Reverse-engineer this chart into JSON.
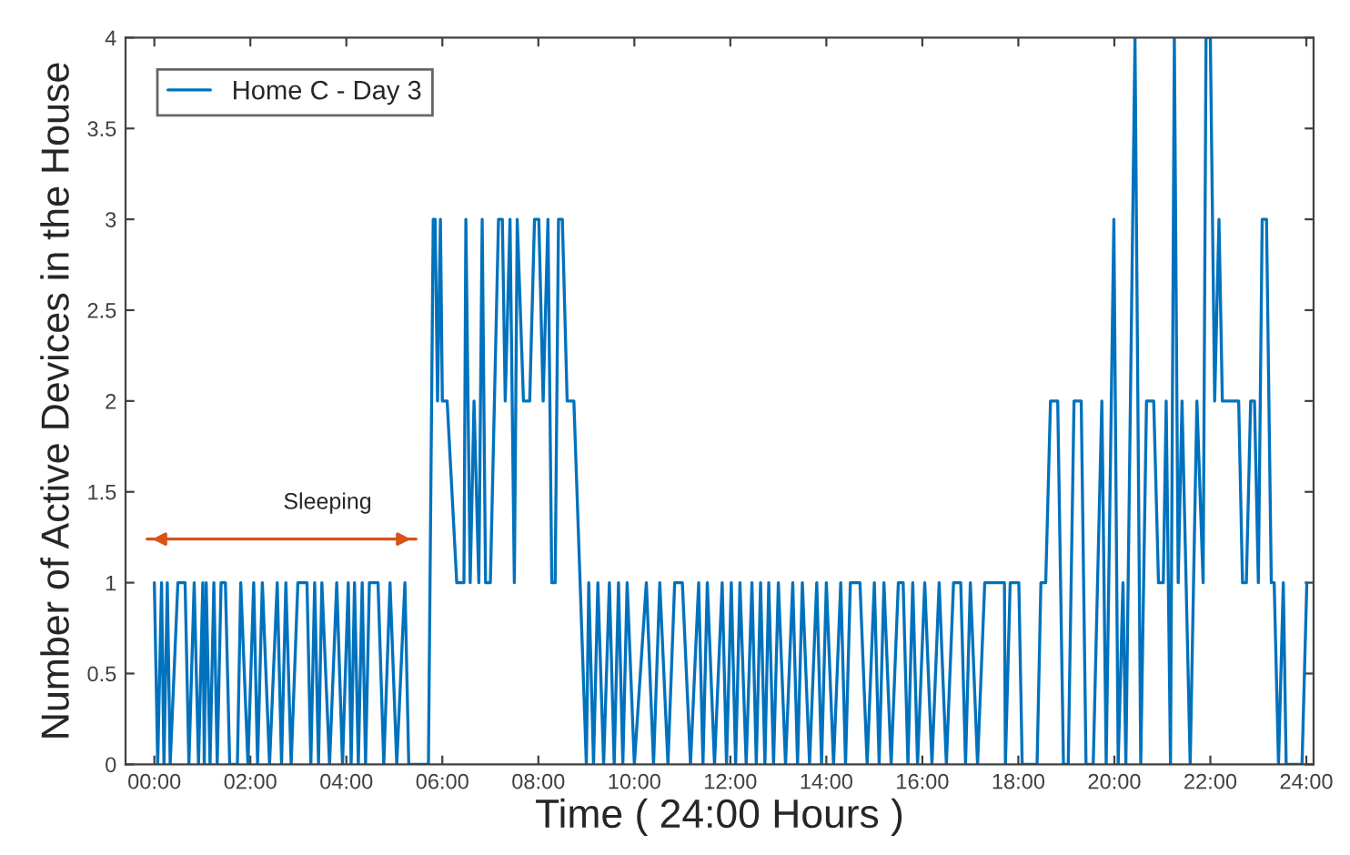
{
  "chart_data": {
    "type": "line",
    "xlabel": "Time ( 24:00 Hours )",
    "ylabel": "Number of Active Devices in the House",
    "series": [
      {
        "name": "Home C - Day 3",
        "color": "#0072bd",
        "x": [
          0,
          0.07,
          0.15,
          0.2,
          0.27,
          0.33,
          0.49,
          0.64,
          0.72,
          0.83,
          0.92,
          1.01,
          1.04,
          1.08,
          1.16,
          1.24,
          1.31,
          1.39,
          1.48,
          1.57,
          1.73,
          1.8,
          1.95,
          2.07,
          2.15,
          2.25,
          2.4,
          2.56,
          2.65,
          2.74,
          2.85,
          2.99,
          3.18,
          3.26,
          3.34,
          3.42,
          3.49,
          3.65,
          3.8,
          3.92,
          4.04,
          4.1,
          4.17,
          4.25,
          4.33,
          4.4,
          4.48,
          4.66,
          4.78,
          4.91,
          5.05,
          5.22,
          5.3,
          5.4,
          5.71,
          5.81,
          5.85,
          5.9,
          5.96,
          6.0,
          6.05,
          6.1,
          6.3,
          6.45,
          6.49,
          6.58,
          6.66,
          6.76,
          6.83,
          6.9,
          7.0,
          7.17,
          7.25,
          7.31,
          7.41,
          7.5,
          7.56,
          7.69,
          7.82,
          7.92,
          8.01,
          8.1,
          8.2,
          8.28,
          8.35,
          8.42,
          8.5,
          8.6,
          8.74,
          9.0,
          9.05,
          9.15,
          9.24,
          9.36,
          9.48,
          9.58,
          9.67,
          9.76,
          9.85,
          10.0,
          10.25,
          10.4,
          10.53,
          10.7,
          10.84,
          11.0,
          11.17,
          11.34,
          11.43,
          11.52,
          11.67,
          11.83,
          11.92,
          12.02,
          12.11,
          12.2,
          12.33,
          12.45,
          12.54,
          12.63,
          12.72,
          12.8,
          12.9,
          13.0,
          13.15,
          13.3,
          13.4,
          13.5,
          13.65,
          13.8,
          13.9,
          14.0,
          14.15,
          14.3,
          14.4,
          14.5,
          14.6,
          14.7,
          14.85,
          15.0,
          15.1,
          15.2,
          15.35,
          15.5,
          15.6,
          15.7,
          15.8,
          15.9,
          16.05,
          16.2,
          16.35,
          16.5,
          16.65,
          16.8,
          16.9,
          17.0,
          17.15,
          17.3,
          17.45,
          17.58,
          17.71,
          17.73,
          17.83,
          18.01,
          18.08,
          18.39,
          18.47,
          18.57,
          18.67,
          18.82,
          18.94,
          19.04,
          19.16,
          19.31,
          19.41,
          19.56,
          19.74,
          19.83,
          19.99,
          20.08,
          20.18,
          20.24,
          20.43,
          20.55,
          20.67,
          20.82,
          20.92,
          21.02,
          21.08,
          21.17,
          21.25,
          21.33,
          21.41,
          21.58,
          21.72,
          21.85,
          21.91,
          22.0,
          22.09,
          22.18,
          22.25,
          22.59,
          22.67,
          22.75,
          22.84,
          22.92,
          23.0,
          23.08,
          23.17,
          23.27,
          23.33,
          23.42,
          23.52,
          23.58,
          23.91,
          24.01
        ],
        "values": [
          1,
          0,
          1,
          0,
          1,
          0,
          1,
          1,
          0,
          1,
          0,
          1,
          0,
          1,
          0,
          1,
          0,
          1,
          1,
          0,
          0,
          1,
          0,
          1,
          0,
          1,
          0,
          1,
          0,
          1,
          0,
          1,
          1,
          0,
          1,
          0,
          1,
          0,
          1,
          0,
          1,
          0,
          1,
          0,
          1,
          0,
          1,
          1,
          0,
          1,
          0,
          1,
          0,
          0,
          0,
          3,
          3,
          2,
          3,
          2,
          2,
          2,
          1,
          1,
          3,
          1,
          2,
          1,
          3,
          1,
          1,
          3,
          3,
          2,
          3,
          1,
          3,
          2,
          2,
          3,
          3,
          2,
          3,
          1,
          1,
          3,
          3,
          2,
          2,
          0,
          1,
          0,
          1,
          0,
          1,
          0,
          1,
          0,
          1,
          0,
          1,
          0,
          1,
          0,
          1,
          1,
          0,
          1,
          0,
          1,
          0,
          1,
          0,
          1,
          0,
          1,
          0,
          1,
          0,
          1,
          0,
          1,
          0,
          1,
          0,
          1,
          0,
          1,
          0,
          1,
          0,
          1,
          0,
          1,
          0,
          1,
          1,
          1,
          0,
          1,
          0,
          1,
          0,
          1,
          1,
          0,
          1,
          0,
          1,
          0,
          1,
          0,
          1,
          1,
          0,
          1,
          0,
          1,
          1,
          1,
          1,
          0,
          1,
          1,
          0,
          0,
          1,
          1,
          2,
          2,
          0,
          0,
          2,
          2,
          0,
          0,
          2,
          0,
          3,
          0,
          1,
          0,
          4,
          0,
          2,
          2,
          1,
          1,
          2,
          0,
          4,
          1,
          2,
          0,
          2,
          1,
          4,
          4,
          2,
          3,
          2,
          2,
          1,
          1,
          2,
          2,
          1,
          3,
          3,
          1,
          1,
          0,
          1,
          0,
          0,
          1
        ]
      },
      {
        "type": "line",
        "color": "#d95319",
        "x": [
          -0.15,
          5.45
        ],
        "values": [
          1.24,
          1.24
        ]
      }
    ],
    "xlim": [
      -0.6,
      24.15
    ],
    "xticks": [
      {
        "value": 0,
        "label": "00:00"
      },
      {
        "value": 2,
        "label": "02:00"
      },
      {
        "value": 4,
        "label": "04:00"
      },
      {
        "value": 6,
        "label": "06:00"
      },
      {
        "value": 8,
        "label": "08:00"
      },
      {
        "value": 10,
        "label": "10:00"
      },
      {
        "value": 12,
        "label": "12:00"
      },
      {
        "value": 14,
        "label": "14:00"
      },
      {
        "value": 16,
        "label": "16:00"
      },
      {
        "value": 18,
        "label": "18:00"
      },
      {
        "value": 20,
        "label": "20:00"
      },
      {
        "value": 22,
        "label": "22:00"
      },
      {
        "value": 24,
        "label": "24:00"
      }
    ],
    "ylim": [
      0,
      4
    ],
    "yticks": [
      0,
      0.5,
      1,
      1.5,
      2,
      2.5,
      3,
      3.5,
      4
    ],
    "annotations": [
      "Sleeping"
    ],
    "legend": "top left",
    "grid": false,
    "marker": "none",
    "line_style": "solid"
  }
}
